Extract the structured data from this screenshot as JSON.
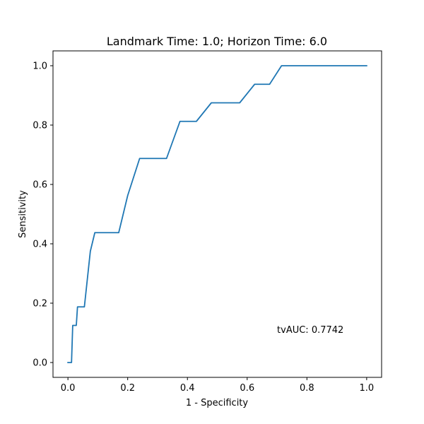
{
  "chart_data": {
    "type": "line",
    "title": "Landmark Time: 1.0; Horizon Time: 6.0",
    "xlabel": "1 - Specificity",
    "ylabel": "Sensitivity",
    "xlim": [
      -0.05,
      1.05
    ],
    "ylim": [
      -0.05,
      1.05
    ],
    "xticks": [
      "0.0",
      "0.2",
      "0.4",
      "0.6",
      "0.8",
      "1.0"
    ],
    "yticks": [
      "0.0",
      "0.2",
      "0.4",
      "0.6",
      "0.8",
      "1.0"
    ],
    "grid": false,
    "series": [
      {
        "color": "#1f77b4",
        "x": [
          0.0,
          0.012,
          0.016,
          0.028,
          0.032,
          0.05,
          0.055,
          0.075,
          0.09,
          0.17,
          0.2,
          0.24,
          0.33,
          0.375,
          0.43,
          0.48,
          0.575,
          0.625,
          0.675,
          0.715,
          1.0
        ],
        "y": [
          0.0,
          0.0,
          0.125,
          0.125,
          0.1875,
          0.1875,
          0.1875,
          0.375,
          0.4375,
          0.4375,
          0.5625,
          0.6875,
          0.6875,
          0.8125,
          0.8125,
          0.875,
          0.875,
          0.9375,
          0.9375,
          1.0,
          1.0
        ]
      }
    ],
    "annotations": [
      {
        "text": "tvAUC: 0.7742",
        "x": 0.7,
        "y": 0.1
      }
    ]
  }
}
